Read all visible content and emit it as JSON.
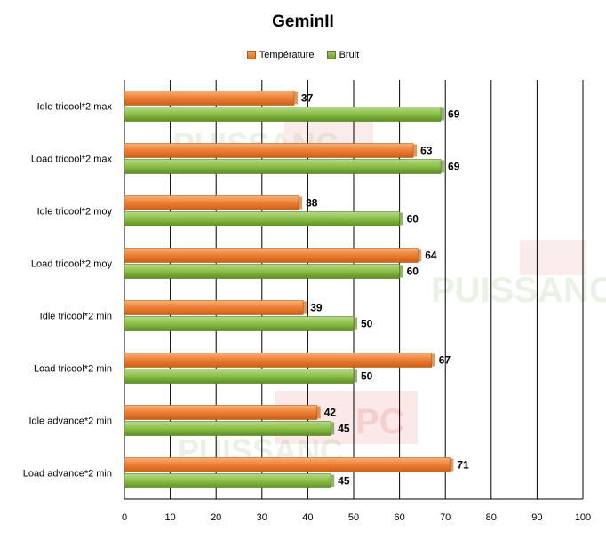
{
  "chart_data": {
    "type": "bar",
    "orientation": "horizontal",
    "title": "GeminII",
    "categories": [
      "Idle tricool*2 max",
      "Load tricool*2 max",
      "Idle tricool*2 moy",
      "Load tricool*2 moy",
      "Idle tricool*2 min",
      "Load tricool*2 min",
      "Idle advance*2 min",
      "Load advance*2 min"
    ],
    "series": [
      {
        "name": "Température",
        "values": [
          37,
          63,
          38,
          64,
          39,
          67,
          42,
          71
        ],
        "color": "#ed7d31"
      },
      {
        "name": "Bruit",
        "values": [
          69,
          69,
          60,
          60,
          50,
          50,
          45,
          45
        ],
        "color": "#8bbf47"
      }
    ],
    "xlim": [
      0,
      100
    ],
    "xticks": [
      0,
      10,
      20,
      30,
      40,
      50,
      60,
      70,
      80,
      90,
      100
    ],
    "grid": true,
    "legend_position": "top"
  },
  "watermark": {
    "text_main": "PUISSANC",
    "text_badge": "PC"
  }
}
